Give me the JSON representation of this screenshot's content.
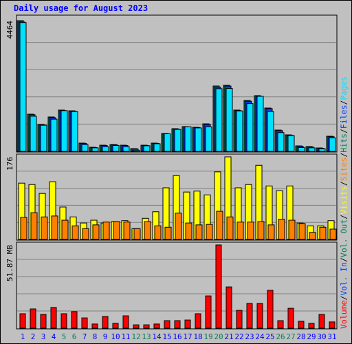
{
  "legend_separator": "/",
  "chart_data": [
    {
      "type": "bar",
      "title": "Daily usage for August 2023",
      "ylim": [
        0,
        4464
      ],
      "yticks": [
        4464
      ],
      "series": [
        {
          "name": "Hits",
          "color": "#00805c",
          "values": [
            4464,
            1270,
            917,
            1175,
            1410,
            1386,
            282,
            141,
            211,
            235,
            211,
            94,
            211,
            282,
            611,
            775,
            846,
            822,
            940,
            2232,
            2256,
            1410,
            1739,
            1903,
            1480,
            728,
            564,
            188,
            164,
            117,
            517
          ]
        },
        {
          "name": "Files",
          "color": "#0040ff",
          "values": [
            4420,
            1250,
            900,
            1150,
            1390,
            1370,
            270,
            130,
            200,
            225,
            200,
            85,
            200,
            270,
            600,
            760,
            830,
            810,
            920,
            2190,
            2230,
            1390,
            1710,
            1880,
            1460,
            710,
            550,
            175,
            150,
            105,
            500
          ]
        },
        {
          "name": "Pages",
          "color": "#00e0ff",
          "values": [
            4400,
            1200,
            890,
            1100,
            1390,
            1360,
            230,
            120,
            160,
            200,
            160,
            40,
            190,
            260,
            600,
            750,
            840,
            800,
            840,
            2140,
            2150,
            1380,
            1630,
            1880,
            1360,
            640,
            540,
            130,
            120,
            90,
            460
          ]
        }
      ]
    },
    {
      "type": "bar",
      "ylim": [
        0,
        176
      ],
      "yticks": [
        176
      ],
      "series": [
        {
          "name": "Visits",
          "color": "#ffff00",
          "values": [
            120,
            117,
            98,
            123,
            69,
            48,
            35,
            41,
            35,
            38,
            40,
            23,
            45,
            59,
            110,
            136,
            101,
            103,
            95,
            144,
            176,
            110,
            117,
            158,
            114,
            104,
            114,
            35,
            29,
            29,
            40
          ]
        },
        {
          "name": "Sites",
          "color": "#ff8000",
          "values": [
            47,
            57,
            48,
            50,
            41,
            29,
            23,
            31,
            37,
            38,
            37,
            23,
            38,
            29,
            26,
            56,
            35,
            31,
            32,
            60,
            48,
            37,
            37,
            38,
            31,
            43,
            41,
            34,
            15,
            26,
            22
          ]
        }
      ]
    },
    {
      "type": "bar",
      "ylim": [
        0,
        51.87
      ],
      "yticks": [
        {
          "value": 51.87,
          "label": "51.87 MB"
        }
      ],
      "series": [
        {
          "name": "Volume",
          "color": "#ff0000",
          "values": [
            9.0,
            12.0,
            8.6,
            12.9,
            9.0,
            10.3,
            6.4,
            2.6,
            7.3,
            3.0,
            7.7,
            2.1,
            2.1,
            2.6,
            4.7,
            4.7,
            5.1,
            9.0,
            20.1,
            51.87,
            25.7,
            11.1,
            15.4,
            15.4,
            23.6,
            4.7,
            12.4,
            4.3,
            3.0,
            8.6,
            3.9
          ]
        }
      ],
      "legend_extra": [
        {
          "name": "Vol. In",
          "color": "#0040ff"
        },
        {
          "name": "Vol. Out",
          "color": "#00805c"
        }
      ],
      "categories": [
        "1",
        "2",
        "3",
        "4",
        "5",
        "6",
        "7",
        "8",
        "9",
        "10",
        "11",
        "12",
        "13",
        "14",
        "15",
        "16",
        "17",
        "18",
        "19",
        "20",
        "21",
        "22",
        "23",
        "24",
        "25",
        "26",
        "27",
        "28",
        "29",
        "30",
        "31"
      ],
      "category_colors": [
        "#0000ff",
        "#0000ff",
        "#0000ff",
        "#0000ff",
        "#00805c",
        "#00805c",
        "#0000ff",
        "#0000ff",
        "#0000ff",
        "#0000ff",
        "#0000ff",
        "#00805c",
        "#00805c",
        "#0000ff",
        "#0000ff",
        "#0000ff",
        "#0000ff",
        "#0000ff",
        "#00805c",
        "#00805c",
        "#0000ff",
        "#0000ff",
        "#0000ff",
        "#0000ff",
        "#0000ff",
        "#00805c",
        "#00805c",
        "#0000ff",
        "#0000ff",
        "#0000ff",
        "#0000ff"
      ]
    }
  ]
}
